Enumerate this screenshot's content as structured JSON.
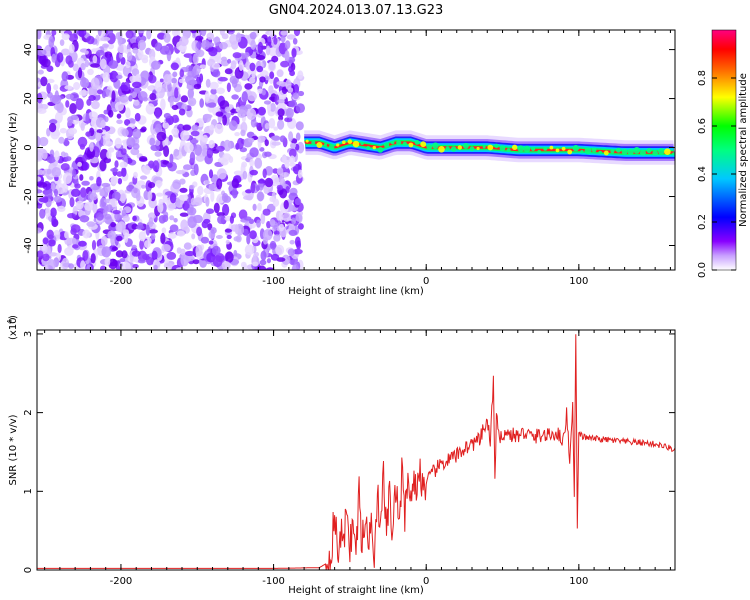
{
  "figure": {
    "title": "GN04.2024.013.07.13.G23"
  },
  "chart_data": [
    {
      "type": "heatmap",
      "xlabel": "Height of straight line (km)",
      "ylabel": "Frequency (Hz)",
      "xlim": [
        -255,
        163
      ],
      "ylim": [
        -50,
        48
      ],
      "xticks": [
        -200,
        -100,
        0,
        100
      ],
      "yticks": [
        -40,
        -20,
        0,
        20,
        40
      ],
      "noise_region_x": [
        -255,
        -82
      ],
      "signal_track": [
        {
          "x": -80,
          "y": 2
        },
        {
          "x": -70,
          "y": 2
        },
        {
          "x": -60,
          "y": 0
        },
        {
          "x": -50,
          "y": 2
        },
        {
          "x": -40,
          "y": 1
        },
        {
          "x": -30,
          "y": 0
        },
        {
          "x": -20,
          "y": 2
        },
        {
          "x": -10,
          "y": 2
        },
        {
          "x": 0,
          "y": 0
        },
        {
          "x": 20,
          "y": 0
        },
        {
          "x": 40,
          "y": 0
        },
        {
          "x": 60,
          "y": -1
        },
        {
          "x": 80,
          "y": -1
        },
        {
          "x": 100,
          "y": -1
        },
        {
          "x": 130,
          "y": -2
        },
        {
          "x": 163,
          "y": -2
        }
      ],
      "grid": false,
      "colorbar": {
        "label": "Normalized spectral amplitude",
        "range": [
          0,
          1
        ],
        "ticks": [
          "0.0",
          "0.2",
          "0.4",
          "0.6",
          "0.8"
        ],
        "colors": [
          "#ffffff",
          "#8800ff",
          "#0000ff",
          "#00ffff",
          "#00ff00",
          "#ffff00",
          "#ff8800",
          "#ff0000",
          "#ff0080"
        ]
      }
    },
    {
      "type": "line",
      "xlabel": "Height of straight line (km)",
      "ylabel": "SNR (10 * v/v)",
      "scale_label": "(x10",
      "scale_exp": "4",
      "xlim": [
        -255,
        163
      ],
      "ylim": [
        0,
        3.05
      ],
      "xticks": [
        -200,
        -100,
        0,
        100
      ],
      "yticks": [
        0,
        1,
        2,
        3
      ],
      "grid": false,
      "series": [
        {
          "color": "#e02020",
          "x": [
            -255,
            -200,
            -150,
            -100,
            -70,
            -64,
            -62,
            -60,
            -58,
            -56,
            -54,
            -52,
            -50,
            -48,
            -46,
            -44,
            -42,
            -40,
            -38,
            -36,
            -34,
            -32,
            -30,
            -28,
            -26,
            -24,
            -22,
            -20,
            -18,
            -16,
            -14,
            -12,
            -10,
            -8,
            -6,
            -4,
            -2,
            0,
            5,
            10,
            15,
            20,
            25,
            30,
            35,
            40,
            42,
            44,
            45,
            46,
            48,
            50,
            55,
            60,
            65,
            70,
            75,
            80,
            85,
            90,
            92,
            94,
            96,
            97,
            98,
            99,
            100,
            102,
            105,
            110,
            120,
            130,
            140,
            150,
            160,
            163
          ],
          "y": [
            0.02,
            0.02,
            0.02,
            0.02,
            0.03,
            0.1,
            0.3,
            0.7,
            0.2,
            0.5,
            0.25,
            0.9,
            0.3,
            0.6,
            0.2,
            1.0,
            0.3,
            0.7,
            0.25,
            0.8,
            0.2,
            1.05,
            0.4,
            1.2,
            0.5,
            1.0,
            0.3,
            1.1,
            0.6,
            1.2,
            0.7,
            1.3,
            0.8,
            1.25,
            0.95,
            1.3,
            1.05,
            1.1,
            1.25,
            1.35,
            1.4,
            1.45,
            1.55,
            1.6,
            1.65,
            1.9,
            1.6,
            2.45,
            1.1,
            1.95,
            1.6,
            1.75,
            1.72,
            1.7,
            1.75,
            1.68,
            1.72,
            1.7,
            1.75,
            1.65,
            2.0,
            1.4,
            2.1,
            0.9,
            3.0,
            0.55,
            1.75,
            1.7,
            1.68,
            1.67,
            1.65,
            1.63,
            1.62,
            1.6,
            1.55,
            1.52
          ]
        }
      ]
    }
  ]
}
